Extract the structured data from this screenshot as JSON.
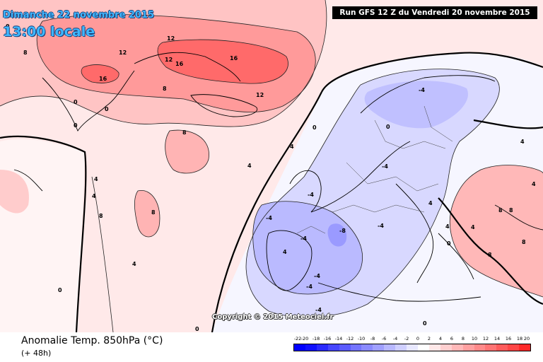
{
  "header": {
    "date_line": "Dimanche 22 novembre 2015",
    "time_line": "13:00 locale",
    "run_info": "Run GFS 12 Z du Vendredi 20 novembre 2015"
  },
  "watermark": "Copyright © 2015 Meteociel.fr",
  "footer": {
    "title": "Anomalie Temp. 850hPa (°C)",
    "subtitle": "(+ 48h)"
  },
  "legend": {
    "labels": [
      "-22",
      "-20",
      "-18",
      "-16",
      "-14",
      "-12",
      "-10",
      "-8",
      "-6",
      "-4",
      "-2",
      "0",
      "2",
      "4",
      "6",
      "8",
      "10",
      "12",
      "14",
      "16",
      "18",
      "20"
    ],
    "colors": [
      "#0000ff",
      "#1010ff",
      "#2a2aff",
      "#4646ff",
      "#5c5cff",
      "#7474ff",
      "#8a8aff",
      "#a0a0ff",
      "#b8b8ff",
      "#cfcfff",
      "#e8e8ff",
      "#ffffff",
      "#ffe8e8",
      "#ffcfcf",
      "#ffb8b8",
      "#ffa0a0",
      "#ff8a8a",
      "#ff7474",
      "#ff5c5c",
      "#ff4646",
      "#ff2a2a"
    ]
  },
  "contour_labels": [
    "12",
    "12",
    "12",
    "16",
    "16",
    "16",
    "12",
    "8",
    "8",
    "8",
    "4",
    "4",
    "4",
    "4",
    "4",
    "4",
    "0",
    "0",
    "0",
    "0",
    "0",
    "0",
    "-4",
    "-4",
    "-4",
    "-4",
    "-4",
    "-8",
    "-4",
    "4",
    "8",
    "8",
    "8",
    "8",
    "8",
    "4",
    "4",
    "0",
    "0",
    "4",
    "8",
    "4",
    "-4",
    "-4",
    "-4",
    "0",
    "0"
  ]
}
